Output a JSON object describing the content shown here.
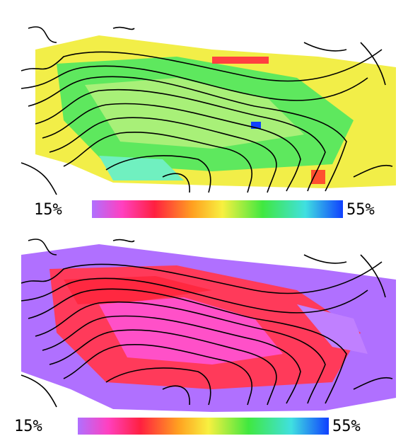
{
  "panels": [
    {
      "colorbar": {
        "min_label": "15%",
        "max_label": "55%"
      }
    },
    {
      "colorbar": {
        "min_label": "15%",
        "max_label": "55%"
      }
    }
  ]
}
